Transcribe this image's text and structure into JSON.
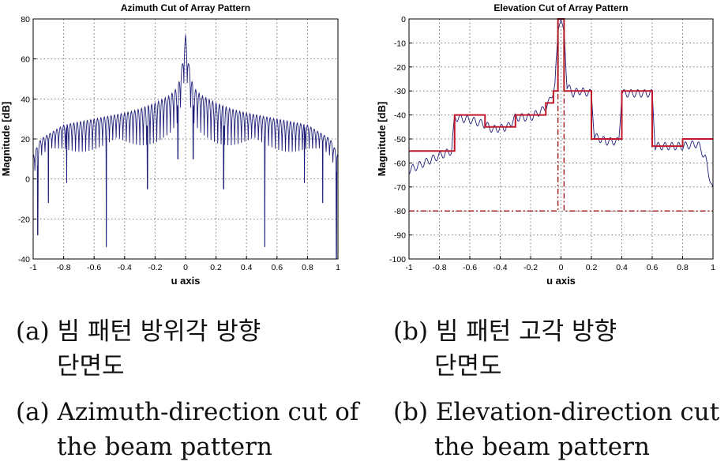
{
  "chart_data": [
    {
      "type": "line",
      "title": "Azimuth Cut of Array Pattern",
      "xlabel": "u axis",
      "ylabel": "Magnitude [dB]",
      "xlim": [
        -1,
        1
      ],
      "ylim": [
        -40,
        80
      ],
      "xticks": [
        -1,
        -0.8,
        -0.6,
        -0.4,
        -0.2,
        0,
        0.2,
        0.4,
        0.6,
        0.8,
        1
      ],
      "xtick_labels": [
        "-1",
        "-0.8",
        "-0.6",
        "-0.4",
        "-0.2",
        "0",
        "0.2",
        "0.4",
        "0.6",
        "0.8",
        "1"
      ],
      "yticks": [
        -40,
        -20,
        0,
        20,
        40,
        60,
        80
      ],
      "ytick_labels": [
        "-40",
        "-20",
        "0",
        "20",
        "40",
        "60",
        "80"
      ],
      "grid": true,
      "series": [
        {
          "color": "#1f1f7a",
          "style": "solid",
          "envelope_x": [
            -1,
            -0.95,
            -0.8,
            -0.6,
            -0.4,
            -0.3,
            -0.2,
            -0.1,
            -0.05,
            -0.02,
            0,
            0.02,
            0.05,
            0.1,
            0.2,
            0.3,
            0.4,
            0.6,
            0.8,
            0.95,
            1
          ],
          "envelope_y": [
            12,
            20,
            27,
            30,
            33,
            35,
            38,
            42,
            46,
            58,
            72,
            58,
            46,
            42,
            38,
            35,
            33,
            30,
            27,
            20,
            12
          ],
          "deep_nulls": [
            {
              "x": -0.97,
              "y": -28
            },
            {
              "x": -0.9,
              "y": -12
            },
            {
              "x": -0.78,
              "y": -2
            },
            {
              "x": -0.52,
              "y": -34
            },
            {
              "x": -0.25,
              "y": -5
            },
            {
              "x": -0.05,
              "y": 10
            },
            {
              "x": 0.05,
              "y": 10
            },
            {
              "x": 0.25,
              "y": -5
            },
            {
              "x": 0.52,
              "y": -34
            },
            {
              "x": 0.78,
              "y": -2
            },
            {
              "x": 0.9,
              "y": -12
            },
            {
              "x": 0.99,
              "y": -40
            }
          ]
        }
      ]
    },
    {
      "type": "line",
      "title": "Elevation Cut of Array Pattern",
      "xlabel": "u axis",
      "ylabel": "Magnitude [dB]",
      "xlim": [
        -1,
        1
      ],
      "ylim": [
        -100,
        0
      ],
      "xticks": [
        -1,
        -0.8,
        -0.6,
        -0.4,
        -0.2,
        0,
        0.2,
        0.4,
        0.6,
        0.8,
        1
      ],
      "xtick_labels": [
        "-1",
        "-0.8",
        "-0.6",
        "-0.4",
        "-0.2",
        "0",
        "0.2",
        "0.4",
        "0.6",
        "0.8",
        "1"
      ],
      "yticks": [
        -100,
        -90,
        -80,
        -70,
        -60,
        -50,
        -40,
        -30,
        -20,
        -10,
        0
      ],
      "ytick_labels": [
        "-100",
        "-90",
        "-80",
        "-70",
        "-60",
        "-50",
        "-40",
        "-30",
        "-20",
        "-10",
        "0"
      ],
      "grid": true,
      "series": [
        {
          "color": "#1f1f7a",
          "style": "solid",
          "x": [
            -1,
            -0.9,
            -0.8,
            -0.72,
            -0.7,
            -0.6,
            -0.5,
            -0.45,
            -0.35,
            -0.3,
            -0.2,
            -0.12,
            -0.08,
            -0.04,
            -0.02,
            0,
            0.02,
            0.04,
            0.08,
            0.12,
            0.2,
            0.22,
            0.3,
            0.38,
            0.4,
            0.5,
            0.6,
            0.62,
            0.7,
            0.8,
            0.9,
            0.95,
            1
          ],
          "y": [
            -63,
            -60,
            -57,
            -55,
            -41,
            -42,
            -44,
            -46,
            -45,
            -41,
            -41,
            -38,
            -35,
            -28,
            -5,
            0,
            -5,
            -28,
            -31,
            -30,
            -31,
            -49,
            -51,
            -51,
            -31,
            -31,
            -31,
            -53,
            -53,
            -53,
            -52,
            -58,
            -72
          ]
        },
        {
          "color": "#c0182a",
          "style": "solid",
          "x": [
            -1,
            -0.7,
            -0.7,
            -0.5,
            -0.5,
            -0.3,
            -0.3,
            -0.1,
            -0.1,
            -0.05,
            -0.05,
            -0.02,
            -0.02,
            0.02,
            0.02,
            0.05,
            0.05,
            0.2,
            0.2,
            0.4,
            0.4,
            0.6,
            0.6,
            0.8,
            0.8,
            1
          ],
          "y": [
            -55,
            -55,
            -40,
            -40,
            -45,
            -45,
            -40,
            -40,
            -35,
            -35,
            -30,
            -30,
            0,
            0,
            -30,
            -30,
            -30,
            -30,
            -50,
            -50,
            -30,
            -30,
            -53,
            -53,
            -50,
            -50
          ]
        },
        {
          "color": "#9c1a1a",
          "style": "dash-dot",
          "x": [
            -1,
            -0.02,
            -0.02,
            0.02,
            0.02,
            1
          ],
          "y": [
            -80,
            -80,
            0,
            0,
            -80,
            -80
          ]
        }
      ]
    }
  ],
  "captions": {
    "a_kr": [
      "(a) 빔 패턴 방위각 방향",
      "단면도"
    ],
    "a_en": [
      "(a) Azimuth-direction cut of",
      "the beam pattern"
    ],
    "b_kr": [
      "(b) 빔 패턴 고각 방향",
      "단면도"
    ],
    "b_en": [
      "(b) Elevation-direction cut of",
      "the beam pattern"
    ]
  }
}
